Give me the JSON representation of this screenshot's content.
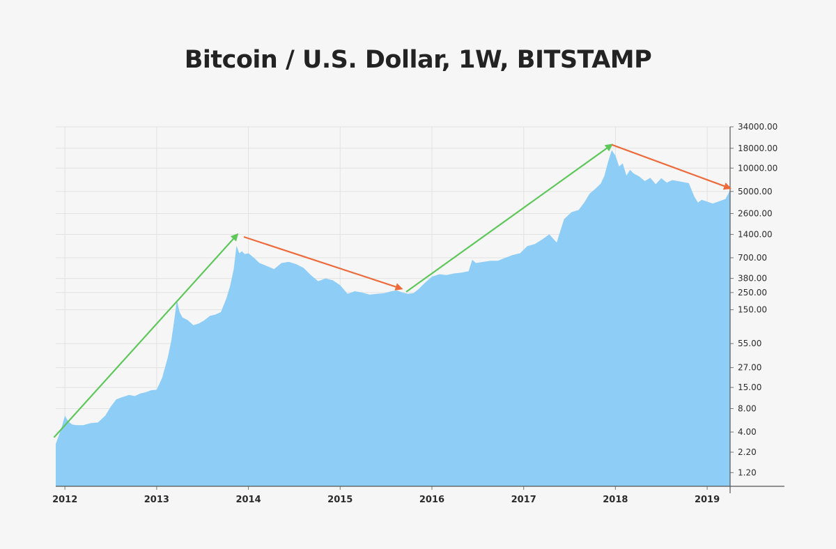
{
  "chart_data": {
    "type": "area",
    "title": "Bitcoin / U.S. Dollar, 1W, BITSTAMP",
    "xlabel": "",
    "ylabel": "",
    "y_scale": "log",
    "y_range": [
      0.8,
      34000
    ],
    "x_range": [
      2011.9,
      2019.25
    ],
    "x_ticks": [
      2012,
      2013,
      2014,
      2015,
      2016,
      2017,
      2018,
      2019
    ],
    "y_ticks": [
      34000,
      18000,
      10000,
      5000,
      2600,
      1400,
      700,
      380,
      250,
      150,
      55,
      27,
      15,
      8,
      4,
      2.2,
      1.2
    ],
    "y_tick_labels": [
      "34000.00",
      "18000.00",
      "10000.00",
      "5000.00",
      "2600.00",
      "1400.00",
      "700.00",
      "380.00",
      "250.00",
      "150.00",
      "55.00",
      "27.00",
      "15.00",
      "8.00",
      "4.00",
      "2.20",
      "1.20"
    ],
    "grid": true,
    "area_color": "#8ecdf5",
    "series": [
      {
        "x": [
          2011.9,
          2011.96,
          2012.0,
          2012.04,
          2012.08,
          2012.12,
          2012.2,
          2012.28,
          2012.36,
          2012.44,
          2012.5,
          2012.56,
          2012.62,
          2012.7,
          2012.76,
          2012.82,
          2012.88,
          2012.94,
          2013.0,
          2013.06,
          2013.12,
          2013.16,
          2013.2,
          2013.22,
          2013.25,
          2013.28,
          2013.34,
          2013.4,
          2013.46,
          2013.52,
          2013.58,
          2013.64,
          2013.7,
          2013.76,
          2013.8,
          2013.84,
          2013.87,
          2013.9,
          2013.93,
          2013.96,
          2014.0,
          2014.06,
          2014.12,
          2014.2,
          2014.28,
          2014.36,
          2014.44,
          2014.52,
          2014.6,
          2014.68,
          2014.76,
          2014.84,
          2014.92,
          2015.0,
          2015.08,
          2015.16,
          2015.24,
          2015.32,
          2015.4,
          2015.48,
          2015.56,
          2015.62,
          2015.68,
          2015.74,
          2015.8,
          2015.86,
          2015.92,
          2016.0,
          2016.08,
          2016.16,
          2016.24,
          2016.32,
          2016.4,
          2016.44,
          2016.48,
          2016.56,
          2016.64,
          2016.72,
          2016.8,
          2016.88,
          2016.96,
          2017.04,
          2017.12,
          2017.2,
          2017.28,
          2017.36,
          2017.44,
          2017.52,
          2017.6,
          2017.66,
          2017.72,
          2017.78,
          2017.84,
          2017.88,
          2017.92,
          2017.96,
          2018.0,
          2018.04,
          2018.08,
          2018.12,
          2018.16,
          2018.2,
          2018.26,
          2018.32,
          2018.38,
          2018.44,
          2018.5,
          2018.56,
          2018.62,
          2018.68,
          2018.74,
          2018.8,
          2018.86,
          2018.9,
          2018.94,
          2019.0,
          2019.06,
          2019.12,
          2019.2,
          2019.25
        ],
        "values": [
          2.8,
          4.4,
          6.5,
          5.4,
          5.0,
          4.9,
          4.9,
          5.2,
          5.3,
          6.5,
          8.5,
          10.5,
          11.2,
          12.0,
          11.6,
          12.5,
          13.0,
          13.8,
          14.0,
          20,
          36,
          60,
          130,
          200,
          140,
          120,
          110,
          95,
          100,
          110,
          125,
          130,
          140,
          210,
          300,
          500,
          1000,
          800,
          850,
          780,
          800,
          700,
          600,
          550,
          500,
          600,
          620,
          580,
          520,
          420,
          350,
          380,
          360,
          310,
          240,
          260,
          250,
          235,
          240,
          245,
          260,
          265,
          250,
          240,
          245,
          280,
          330,
          400,
          430,
          420,
          440,
          450,
          470,
          660,
          600,
          620,
          640,
          640,
          700,
          760,
          800,
          990,
          1050,
          1200,
          1400,
          1100,
          2200,
          2700,
          2900,
          3600,
          4700,
          5400,
          6300,
          8000,
          12000,
          17000,
          14500,
          10500,
          11500,
          8000,
          9500,
          8500,
          7800,
          6800,
          7500,
          6200,
          7400,
          6500,
          7000,
          6800,
          6600,
          6400,
          4300,
          3600,
          3900,
          3700,
          3500,
          3700,
          4000,
          5200
        ]
      }
    ],
    "annotations": [
      {
        "type": "arrow",
        "color": "#5ec75a",
        "from": [
          2011.88,
          3.4
        ],
        "to": [
          2013.88,
          1400
        ]
      },
      {
        "type": "arrow",
        "color": "#ef6a3a",
        "from": [
          2013.95,
          1300
        ],
        "to": [
          2015.67,
          280
        ]
      },
      {
        "type": "arrow",
        "color": "#5ec75a",
        "from": [
          2015.72,
          255
        ],
        "to": [
          2017.96,
          20000
        ]
      },
      {
        "type": "arrow",
        "color": "#ef6a3a",
        "from": [
          2017.96,
          20000
        ],
        "to": [
          2019.25,
          5500
        ]
      }
    ]
  }
}
